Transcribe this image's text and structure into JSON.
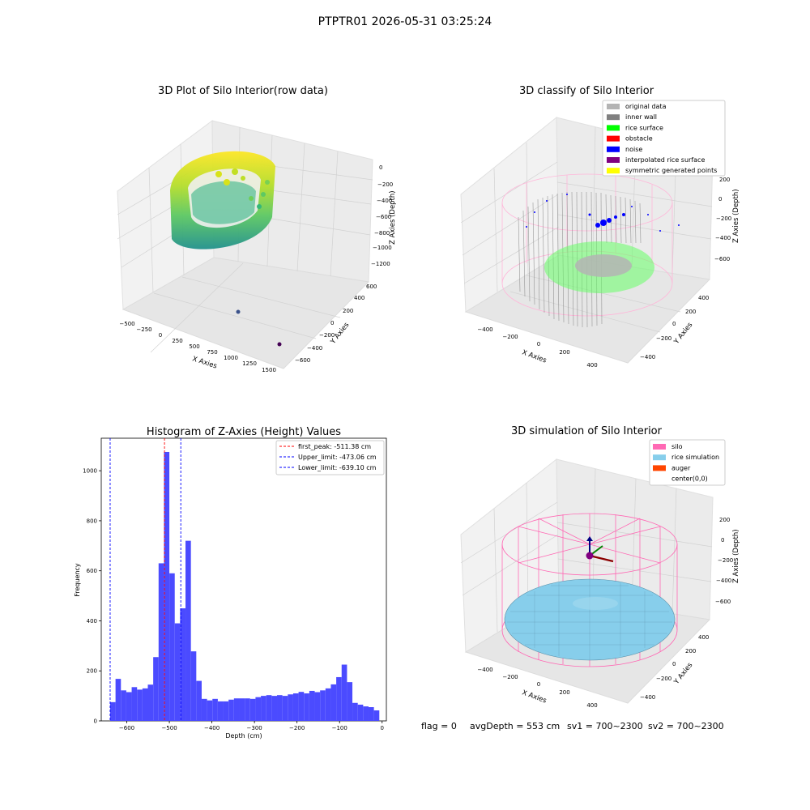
{
  "suptitle": "PTPTR01 2026-05-31 03:25:24",
  "panels": {
    "raw": {
      "title": "3D Plot of Silo Interior(row data)",
      "xlabel": "X Axies",
      "ylabel": "Y Axies",
      "zlabel": "Z Axies (Depth)",
      "xticks": [
        "−500",
        "−250",
        "0",
        "250",
        "500",
        "750",
        "1000",
        "1250",
        "1500"
      ],
      "yticks": [
        "−600",
        "−400",
        "−200",
        "0",
        "200",
        "400",
        "600"
      ],
      "zticks": [
        "0",
        "−200",
        "−400",
        "−600",
        "−800",
        "−1000",
        "−1200"
      ]
    },
    "classify": {
      "title": "3D classify of Silo Interior",
      "xlabel": "X Axies",
      "ylabel": "Y Axies",
      "zlabel": "Z Axies (Depth)",
      "xticks": [
        "−400",
        "−200",
        "0",
        "200",
        "400"
      ],
      "yticks": [
        "−400",
        "−200",
        "0",
        "200",
        "400"
      ],
      "zticks": [
        "200",
        "0",
        "−200",
        "−400",
        "−600"
      ],
      "legend": [
        {
          "label": "original data",
          "color": "#b4b4b4"
        },
        {
          "label": "inner wall",
          "color": "#808080"
        },
        {
          "label": "rice surface",
          "color": "#00ff00"
        },
        {
          "label": "obstacle",
          "color": "#ff0000"
        },
        {
          "label": "noise",
          "color": "#0000ff"
        },
        {
          "label": "interpolated rice surface",
          "color": "#800080"
        },
        {
          "label": "symmetric generated points",
          "color": "#ffff00"
        }
      ]
    },
    "simulation": {
      "title": "3D simulation of Silo Interior",
      "xlabel": "X Axies",
      "ylabel": "Y Axies",
      "zlabel": "Z Axies (Depth)",
      "xticks": [
        "−400",
        "−200",
        "0",
        "200",
        "400"
      ],
      "yticks": [
        "−400",
        "−200",
        "0",
        "200",
        "400"
      ],
      "zticks": [
        "200",
        "0",
        "−200",
        "−400",
        "−600"
      ],
      "legend": [
        {
          "label": "silo",
          "color": "#ff69b4"
        },
        {
          "label": "rice simulation",
          "color": "#87ceeb"
        },
        {
          "label": "auger",
          "color": "#ff4500"
        },
        {
          "label": "center(0,0)",
          "color": "#ffffff"
        }
      ]
    }
  },
  "chart_data": {
    "type": "bar",
    "title": "Histogram of Z-Axies (Height) Values",
    "xlabel": "Depth (cm)",
    "ylabel": "Frequency",
    "xlim": [
      -660,
      10
    ],
    "ylim": [
      0,
      1130
    ],
    "xticks": [
      -600,
      -500,
      -400,
      -300,
      -200,
      -100,
      0
    ],
    "yticks": [
      0,
      200,
      400,
      600,
      800,
      1000
    ],
    "bin_start": -639.1,
    "bin_width": 12.65,
    "values": [
      75,
      168,
      122,
      115,
      135,
      125,
      130,
      145,
      255,
      630,
      1075,
      590,
      390,
      450,
      720,
      278,
      160,
      88,
      82,
      88,
      78,
      78,
      85,
      90,
      90,
      90,
      88,
      95,
      100,
      103,
      100,
      103,
      100,
      106,
      110,
      116,
      110,
      120,
      115,
      122,
      130,
      146,
      175,
      225,
      155,
      72,
      65,
      58,
      55,
      42
    ],
    "bar_color": "#4b4bff",
    "vlines": [
      {
        "label": "first_peak: -511.38 cm",
        "x": -511.38,
        "color": "#ff0000"
      },
      {
        "label": "Upper_limit: -473.06 cm",
        "x": -473.06,
        "color": "#0000ff"
      },
      {
        "label": "Lower_limit: -639.10 cm",
        "x": -639.1,
        "color": "#0000ff"
      }
    ],
    "legend_position": "upper right"
  },
  "status": {
    "flag": "flag = 0",
    "avg": "avgDepth = 553 cm",
    "sv1": "sv1 = 700~2300",
    "sv2": "sv2 = 700~2300"
  }
}
